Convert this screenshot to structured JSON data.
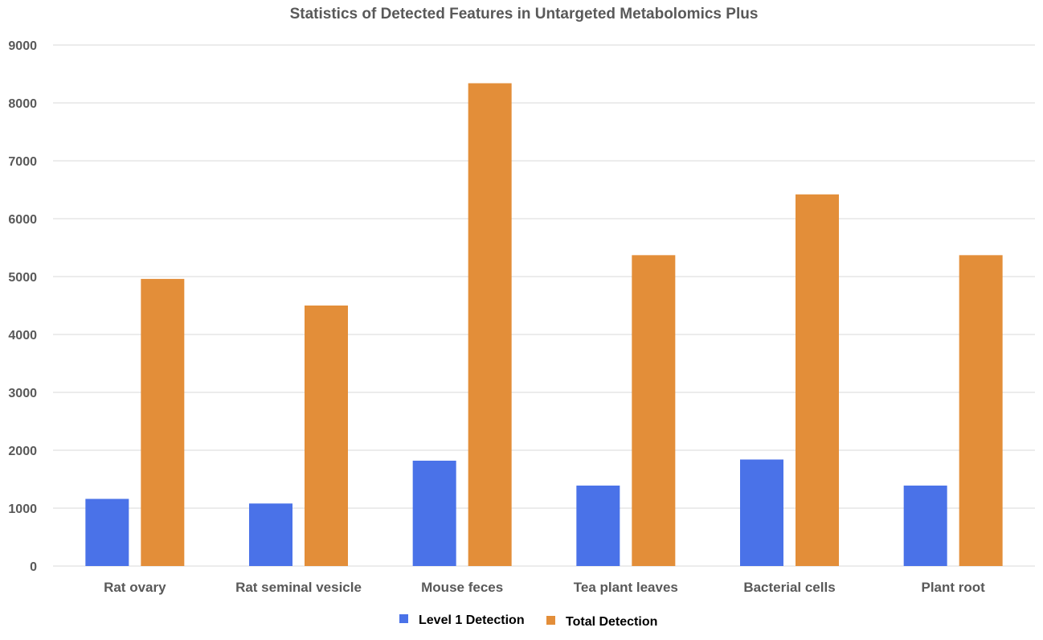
{
  "chart_data": {
    "type": "bar",
    "title": "Statistics of Detected Features in Untargeted Metabolomics Plus",
    "categories": [
      "Rat ovary",
      "Rat seminal vesicle",
      "Mouse feces",
      "Tea plant leaves",
      "Bacterial cells",
      "Plant root"
    ],
    "series": [
      {
        "name": "Level 1 Detection",
        "color": "#4a72e8",
        "values": [
          1160,
          1080,
          1820,
          1390,
          1840,
          1390
        ]
      },
      {
        "name": "Total Detection",
        "color": "#e38e39",
        "values": [
          4960,
          4500,
          8340,
          5370,
          6420,
          5370
        ]
      }
    ],
    "ylim": [
      0,
      9000
    ],
    "yticks": [
      "0",
      "1000",
      "2000",
      "3000",
      "4000",
      "5000",
      "6000",
      "7000",
      "8000",
      "9000"
    ],
    "xlabel": "",
    "ylabel": "",
    "grid": true,
    "legend_position": "bottom"
  }
}
